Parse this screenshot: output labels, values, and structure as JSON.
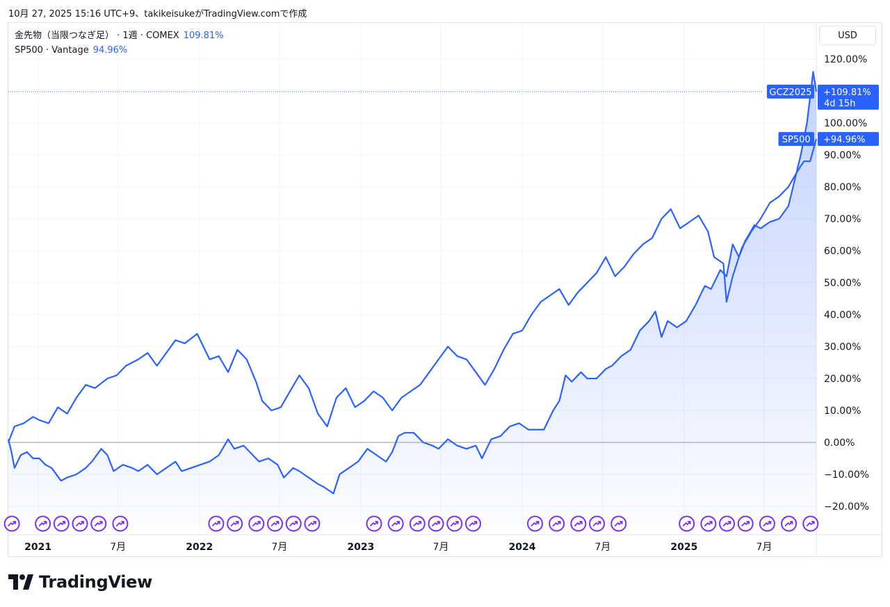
{
  "header": {
    "text": "10月 27, 2025 15:16 UTC+9、takikeisukeがTradingView.comで作成"
  },
  "legend": [
    {
      "label": "金先物（当限つなぎ足） · 1週 · COMEX",
      "value": "109.81%"
    },
    {
      "label": "SP500 · Vantage",
      "value": "94.96%"
    }
  ],
  "currency_label": "USD",
  "brand": {
    "name": "TradingView"
  },
  "colors": {
    "line": "#2962ff",
    "area": "#2962ff",
    "grid": "#f0f3fa",
    "zero": "#9598a1",
    "event": "#7b2ff7"
  },
  "chart_data": {
    "type": "line",
    "x_range": [
      "2020-10-26",
      "2025-10-27"
    ],
    "y_unit": "%",
    "y_range": [
      -24,
      128
    ],
    "y_ticks": [
      120,
      100,
      90,
      80,
      70,
      60,
      50,
      40,
      30,
      20,
      10,
      0,
      -10,
      -20
    ],
    "y_tick_labels": [
      "120.00%",
      "100.00%",
      "90.00%",
      "80.00%",
      "70.00%",
      "60.00%",
      "50.00%",
      "40.00%",
      "30.00%",
      "20.00%",
      "10.00%",
      "0.00%",
      "−10.00%",
      "−20.00%"
    ],
    "x_ticks": [
      {
        "date": "2021-01-01",
        "label": "2021",
        "bold": true
      },
      {
        "date": "2021-07-01",
        "label": "7月",
        "bold": false
      },
      {
        "date": "2022-01-01",
        "label": "2022",
        "bold": true
      },
      {
        "date": "2022-07-01",
        "label": "7月",
        "bold": false
      },
      {
        "date": "2023-01-01",
        "label": "2023",
        "bold": true
      },
      {
        "date": "2023-07-01",
        "label": "7月",
        "bold": false
      },
      {
        "date": "2024-01-01",
        "label": "2024",
        "bold": true
      },
      {
        "date": "2024-07-01",
        "label": "7月",
        "bold": false
      },
      {
        "date": "2025-01-01",
        "label": "2025",
        "bold": true
      },
      {
        "date": "2025-07-01",
        "label": "7月",
        "bold": false
      }
    ],
    "series": [
      {
        "name": "GCZ2025",
        "last_label": "+109.81%",
        "countdown": "4d 15h",
        "area": true,
        "dotted_last_line": true,
        "points": [
          [
            "2020-10-26",
            1
          ],
          [
            "2020-11-02",
            -3
          ],
          [
            "2020-11-09",
            -8
          ],
          [
            "2020-11-23",
            -4
          ],
          [
            "2020-12-07",
            -3
          ],
          [
            "2020-12-21",
            -5
          ],
          [
            "2021-01-04",
            -5
          ],
          [
            "2021-01-18",
            -7
          ],
          [
            "2021-02-01",
            -8
          ],
          [
            "2021-02-22",
            -12
          ],
          [
            "2021-03-08",
            -11
          ],
          [
            "2021-03-29",
            -10
          ],
          [
            "2021-04-19",
            -8
          ],
          [
            "2021-05-03",
            -6
          ],
          [
            "2021-05-24",
            -2
          ],
          [
            "2021-06-07",
            -4
          ],
          [
            "2021-06-21",
            -9
          ],
          [
            "2021-07-12",
            -7
          ],
          [
            "2021-08-02",
            -8
          ],
          [
            "2021-08-16",
            -9
          ],
          [
            "2021-09-06",
            -7
          ],
          [
            "2021-09-27",
            -10
          ],
          [
            "2021-10-18",
            -8
          ],
          [
            "2021-11-08",
            -6
          ],
          [
            "2021-11-22",
            -9
          ],
          [
            "2021-12-13",
            -8
          ],
          [
            "2022-01-03",
            -7
          ],
          [
            "2022-01-24",
            -6
          ],
          [
            "2022-02-14",
            -4
          ],
          [
            "2022-03-07",
            1
          ],
          [
            "2022-03-21",
            -2
          ],
          [
            "2022-04-11",
            -1
          ],
          [
            "2022-05-02",
            -4
          ],
          [
            "2022-05-16",
            -6
          ],
          [
            "2022-06-06",
            -5
          ],
          [
            "2022-06-27",
            -7
          ],
          [
            "2022-07-11",
            -11
          ],
          [
            "2022-08-01",
            -8
          ],
          [
            "2022-08-15",
            -9
          ],
          [
            "2022-09-05",
            -11
          ],
          [
            "2022-09-26",
            -13
          ],
          [
            "2022-10-10",
            -14
          ],
          [
            "2022-10-31",
            -16
          ],
          [
            "2022-11-14",
            -10
          ],
          [
            "2022-12-05",
            -8
          ],
          [
            "2022-12-26",
            -6
          ],
          [
            "2023-01-16",
            -2
          ],
          [
            "2023-02-06",
            -4
          ],
          [
            "2023-02-27",
            -6
          ],
          [
            "2023-03-13",
            -3
          ],
          [
            "2023-03-27",
            2
          ],
          [
            "2023-04-10",
            3
          ],
          [
            "2023-05-01",
            3
          ],
          [
            "2023-05-22",
            0
          ],
          [
            "2023-06-12",
            -1
          ],
          [
            "2023-06-26",
            -2
          ],
          [
            "2023-07-17",
            1
          ],
          [
            "2023-08-07",
            -1
          ],
          [
            "2023-08-28",
            -2
          ],
          [
            "2023-09-18",
            -1
          ],
          [
            "2023-10-02",
            -5
          ],
          [
            "2023-10-23",
            1
          ],
          [
            "2023-11-13",
            2
          ],
          [
            "2023-12-04",
            5
          ],
          [
            "2023-12-25",
            6
          ],
          [
            "2024-01-15",
            4
          ],
          [
            "2024-02-05",
            4
          ],
          [
            "2024-02-19",
            4
          ],
          [
            "2024-03-11",
            10
          ],
          [
            "2024-03-25",
            13
          ],
          [
            "2024-04-08",
            21
          ],
          [
            "2024-04-22",
            19
          ],
          [
            "2024-05-13",
            22
          ],
          [
            "2024-05-27",
            20
          ],
          [
            "2024-06-17",
            20
          ],
          [
            "2024-07-08",
            23
          ],
          [
            "2024-07-22",
            24
          ],
          [
            "2024-08-12",
            27
          ],
          [
            "2024-09-02",
            29
          ],
          [
            "2024-09-23",
            35
          ],
          [
            "2024-10-14",
            38
          ],
          [
            "2024-10-28",
            41
          ],
          [
            "2024-11-11",
            33
          ],
          [
            "2024-11-25",
            38
          ],
          [
            "2024-12-16",
            36
          ],
          [
            "2025-01-06",
            38
          ],
          [
            "2025-01-27",
            43
          ],
          [
            "2025-02-17",
            49
          ],
          [
            "2025-03-03",
            48
          ],
          [
            "2025-03-24",
            54
          ],
          [
            "2025-04-07",
            52
          ],
          [
            "2025-04-21",
            62
          ],
          [
            "2025-05-05",
            58
          ],
          [
            "2025-05-19",
            63
          ],
          [
            "2025-06-09",
            68
          ],
          [
            "2025-06-23",
            67
          ],
          [
            "2025-07-14",
            69
          ],
          [
            "2025-08-04",
            70
          ],
          [
            "2025-08-25",
            74
          ],
          [
            "2025-09-08",
            82
          ],
          [
            "2025-09-22",
            90
          ],
          [
            "2025-10-06",
            100
          ],
          [
            "2025-10-20",
            116
          ],
          [
            "2025-10-27",
            109.81
          ]
        ]
      },
      {
        "name": "SP500",
        "last_label": "+94.96%",
        "area": false,
        "dotted_last_line": false,
        "points": [
          [
            "2020-10-26",
            0
          ],
          [
            "2020-11-09",
            5
          ],
          [
            "2020-11-30",
            6
          ],
          [
            "2020-12-21",
            8
          ],
          [
            "2021-01-04",
            7
          ],
          [
            "2021-01-25",
            6
          ],
          [
            "2021-02-15",
            11
          ],
          [
            "2021-03-08",
            9
          ],
          [
            "2021-03-29",
            14
          ],
          [
            "2021-04-19",
            18
          ],
          [
            "2021-05-10",
            17
          ],
          [
            "2021-06-07",
            20
          ],
          [
            "2021-06-28",
            21
          ],
          [
            "2021-07-19",
            24
          ],
          [
            "2021-08-16",
            26
          ],
          [
            "2021-09-06",
            28
          ],
          [
            "2021-09-27",
            24
          ],
          [
            "2021-10-18",
            28
          ],
          [
            "2021-11-08",
            32
          ],
          [
            "2021-11-29",
            31
          ],
          [
            "2021-12-27",
            34
          ],
          [
            "2022-01-10",
            30
          ],
          [
            "2022-01-24",
            26
          ],
          [
            "2022-02-14",
            27
          ],
          [
            "2022-03-07",
            22
          ],
          [
            "2022-03-28",
            29
          ],
          [
            "2022-04-18",
            26
          ],
          [
            "2022-05-09",
            19
          ],
          [
            "2022-05-23",
            13
          ],
          [
            "2022-06-13",
            10
          ],
          [
            "2022-07-04",
            11
          ],
          [
            "2022-07-25",
            16
          ],
          [
            "2022-08-15",
            21
          ],
          [
            "2022-09-05",
            17
          ],
          [
            "2022-09-26",
            9
          ],
          [
            "2022-10-17",
            5
          ],
          [
            "2022-11-07",
            14
          ],
          [
            "2022-11-28",
            17
          ],
          [
            "2022-12-19",
            11
          ],
          [
            "2023-01-09",
            13
          ],
          [
            "2023-01-30",
            16
          ],
          [
            "2023-02-20",
            14
          ],
          [
            "2023-03-13",
            10
          ],
          [
            "2023-04-03",
            14
          ],
          [
            "2023-04-24",
            16
          ],
          [
            "2023-05-15",
            18
          ],
          [
            "2023-06-05",
            22
          ],
          [
            "2023-06-26",
            26
          ],
          [
            "2023-07-17",
            30
          ],
          [
            "2023-08-07",
            27
          ],
          [
            "2023-08-28",
            26
          ],
          [
            "2023-09-18",
            22
          ],
          [
            "2023-10-09",
            18
          ],
          [
            "2023-10-30",
            23
          ],
          [
            "2023-11-20",
            29
          ],
          [
            "2023-12-11",
            34
          ],
          [
            "2024-01-01",
            35
          ],
          [
            "2024-01-22",
            40
          ],
          [
            "2024-02-12",
            44
          ],
          [
            "2024-03-04",
            46
          ],
          [
            "2024-03-25",
            48
          ],
          [
            "2024-04-15",
            43
          ],
          [
            "2024-05-06",
            47
          ],
          [
            "2024-05-27",
            50
          ],
          [
            "2024-06-17",
            53
          ],
          [
            "2024-07-08",
            58
          ],
          [
            "2024-07-29",
            52
          ],
          [
            "2024-08-19",
            55
          ],
          [
            "2024-09-09",
            59
          ],
          [
            "2024-09-30",
            62
          ],
          [
            "2024-10-21",
            64
          ],
          [
            "2024-11-11",
            70
          ],
          [
            "2024-12-02",
            73
          ],
          [
            "2024-12-23",
            67
          ],
          [
            "2025-01-13",
            69
          ],
          [
            "2025-02-03",
            71
          ],
          [
            "2025-02-24",
            66
          ],
          [
            "2025-03-10",
            58
          ],
          [
            "2025-03-31",
            56
          ],
          [
            "2025-04-07",
            44
          ],
          [
            "2025-04-21",
            52
          ],
          [
            "2025-05-12",
            61
          ],
          [
            "2025-06-02",
            66
          ],
          [
            "2025-06-23",
            70
          ],
          [
            "2025-07-14",
            75
          ],
          [
            "2025-08-04",
            77
          ],
          [
            "2025-08-25",
            80
          ],
          [
            "2025-09-15",
            85
          ],
          [
            "2025-09-29",
            88
          ],
          [
            "2025-10-13",
            88
          ],
          [
            "2025-10-27",
            94.96
          ]
        ]
      }
    ],
    "event_markers": [
      "2020-11-03",
      "2021-01-12",
      "2021-02-23",
      "2021-04-06",
      "2021-05-18",
      "2021-07-06",
      "2022-02-08",
      "2022-03-22",
      "2022-05-10",
      "2022-06-21",
      "2022-08-02",
      "2022-09-13",
      "2023-01-31",
      "2023-03-21",
      "2023-05-09",
      "2023-06-20",
      "2023-08-01",
      "2023-09-12",
      "2024-01-30",
      "2024-03-19",
      "2024-05-07",
      "2024-06-18",
      "2024-08-06",
      "2025-01-07",
      "2025-02-25",
      "2025-04-08",
      "2025-05-20",
      "2025-07-08",
      "2025-08-26",
      "2025-10-14"
    ]
  }
}
